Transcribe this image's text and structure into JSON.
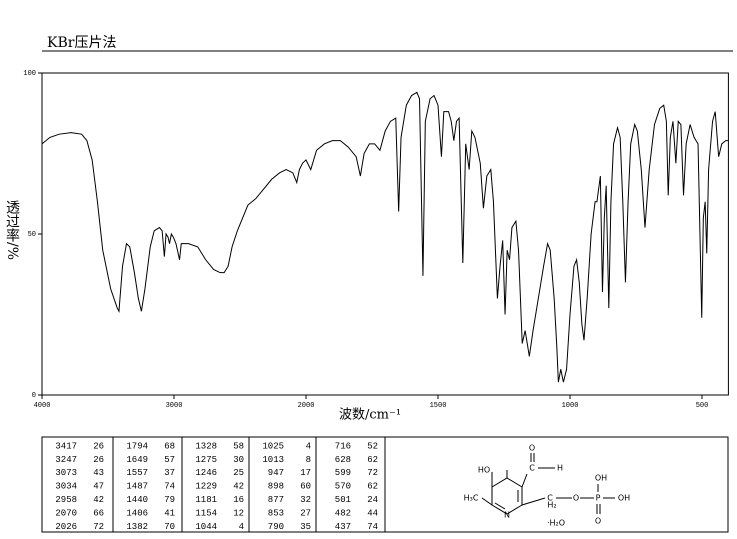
{
  "header": {
    "title": "KBr压片法"
  },
  "chart_data": {
    "type": "line",
    "x_label": "波数/cm⁻¹",
    "y_label": "透过率/%",
    "xlim": [
      4000,
      400
    ],
    "xticks": [
      4000,
      3000,
      2000,
      1500,
      1000,
      500
    ],
    "ylim": [
      0,
      100
    ],
    "yticks": [
      0,
      50,
      100
    ],
    "color": "#000000",
    "x": [
      4000,
      3940,
      3870,
      3780,
      3700,
      3660,
      3620,
      3580,
      3540,
      3480,
      3430,
      3417,
      3390,
      3360,
      3335,
      3300,
      3270,
      3247,
      3220,
      3180,
      3150,
      3110,
      3090,
      3073,
      3060,
      3045,
      3034,
      3020,
      3005,
      2985,
      2958,
      2945,
      2890,
      2820,
      2760,
      2700,
      2650,
      2620,
      2590,
      2560,
      2520,
      2480,
      2440,
      2380,
      2320,
      2260,
      2200,
      2150,
      2100,
      2070,
      2050,
      2026,
      2000,
      1982,
      1960,
      1930,
      1900,
      1870,
      1840,
      1810,
      1794,
      1780,
      1760,
      1740,
      1720,
      1700,
      1680,
      1660,
      1649,
      1640,
      1620,
      1600,
      1580,
      1570,
      1557,
      1548,
      1530,
      1515,
      1500,
      1487,
      1478,
      1460,
      1450,
      1440,
      1430,
      1420,
      1406,
      1395,
      1382,
      1372,
      1360,
      1340,
      1328,
      1315,
      1300,
      1290,
      1275,
      1265,
      1255,
      1246,
      1238,
      1229,
      1220,
      1205,
      1195,
      1181,
      1170,
      1154,
      1140,
      1120,
      1100,
      1085,
      1075,
      1060,
      1050,
      1044,
      1035,
      1025,
      1013,
      1000,
      985,
      975,
      965,
      955,
      947,
      935,
      920,
      905,
      898,
      885,
      877,
      870,
      863,
      853,
      845,
      835,
      820,
      810,
      800,
      790,
      780,
      770,
      755,
      745,
      730,
      716,
      700,
      680,
      660,
      645,
      635,
      628,
      620,
      610,
      599,
      590,
      580,
      570,
      560,
      545,
      530,
      515,
      501,
      495,
      488,
      482,
      475,
      460,
      450,
      437,
      425,
      410,
      400
    ],
    "values": [
      78,
      80,
      81,
      81.5,
      81,
      79,
      73,
      60,
      45,
      33,
      27,
      26,
      40,
      47,
      46,
      38,
      30,
      26,
      33,
      46,
      51,
      52,
      51,
      43,
      50,
      49,
      47,
      50,
      49,
      47,
      42,
      47,
      47,
      46,
      42,
      39,
      38,
      38,
      40,
      46,
      51,
      55,
      59,
      61,
      64,
      67,
      69,
      70,
      69,
      66,
      70,
      72,
      73,
      70,
      76,
      78,
      79,
      79,
      77,
      74,
      68,
      75,
      78,
      78,
      76,
      82,
      85,
      86,
      57,
      80,
      90,
      93,
      94,
      92,
      37,
      85,
      92,
      93,
      90,
      74,
      88,
      88,
      85,
      79,
      85,
      86,
      41,
      78,
      70,
      82,
      80,
      72,
      58,
      68,
      70,
      60,
      30,
      40,
      48,
      25,
      45,
      42,
      52,
      54,
      45,
      16,
      20,
      12,
      20,
      30,
      40,
      47,
      45,
      30,
      15,
      4,
      8,
      4,
      8,
      25,
      40,
      42,
      35,
      22,
      17,
      30,
      50,
      60,
      60,
      68,
      32,
      55,
      65,
      27,
      60,
      78,
      83,
      80,
      60,
      35,
      60,
      78,
      84,
      82,
      70,
      52,
      70,
      84,
      89,
      90,
      85,
      62,
      80,
      85,
      72,
      85,
      84,
      62,
      78,
      84,
      80,
      78,
      24,
      55,
      60,
      44,
      70,
      85,
      88,
      74,
      78,
      79,
      79
    ]
  },
  "peak_table": {
    "columns": [
      [
        [
          3417,
          26
        ],
        [
          3247,
          26
        ],
        [
          3073,
          43
        ],
        [
          3034,
          47
        ],
        [
          2958,
          42
        ],
        [
          2070,
          66
        ],
        [
          2026,
          72
        ]
      ],
      [
        [
          1794,
          68
        ],
        [
          1649,
          57
        ],
        [
          1557,
          37
        ],
        [
          1487,
          74
        ],
        [
          1440,
          79
        ],
        [
          1406,
          41
        ],
        [
          1382,
          70
        ]
      ],
      [
        [
          1328,
          58
        ],
        [
          1275,
          30
        ],
        [
          1246,
          25
        ],
        [
          1229,
          42
        ],
        [
          1181,
          16
        ],
        [
          1154,
          12
        ],
        [
          1044,
          4
        ]
      ],
      [
        [
          1025,
          4
        ],
        [
          1013,
          8
        ],
        [
          947,
          17
        ],
        [
          898,
          60
        ],
        [
          877,
          32
        ],
        [
          853,
          27
        ],
        [
          790,
          35
        ]
      ],
      [
        [
          716,
          52
        ],
        [
          628,
          62
        ],
        [
          599,
          72
        ],
        [
          570,
          62
        ],
        [
          501,
          24
        ],
        [
          482,
          44
        ],
        [
          437,
          74
        ]
      ]
    ]
  },
  "structure": {
    "labels": [
      "O",
      "C",
      "H",
      "HO",
      "H₃C",
      "N",
      "C",
      "H₂",
      "O",
      "P",
      "OH",
      "OH",
      "O",
      "·H₂O"
    ]
  }
}
